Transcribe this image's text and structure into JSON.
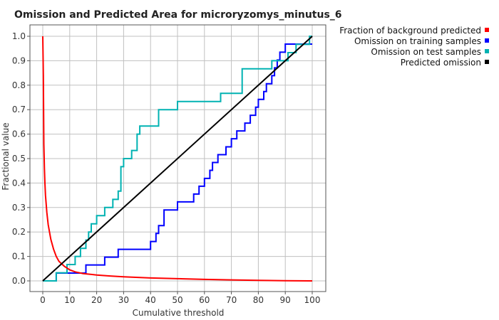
{
  "chart_data": {
    "type": "line",
    "title": "Omission and Predicted Area for microryzomys_minutus_6",
    "xlabel": "Cumulative threshold",
    "ylabel": "Fractional value",
    "xlim": [
      0,
      100
    ],
    "ylim": [
      0,
      1.0
    ],
    "xticks": [
      0,
      10,
      20,
      30,
      40,
      50,
      60,
      70,
      80,
      90,
      100
    ],
    "yticks": [
      0.0,
      0.1,
      0.2,
      0.3,
      0.4,
      0.5,
      0.6,
      0.7,
      0.8,
      0.9,
      1.0
    ],
    "xtick_labels": [
      "0",
      "10",
      "20",
      "30",
      "40",
      "50",
      "60",
      "70",
      "80",
      "90",
      "100"
    ],
    "ytick_labels": [
      "0.0",
      "0.1",
      "0.2",
      "0.3",
      "0.4",
      "0.5",
      "0.6",
      "0.7",
      "0.8",
      "0.9",
      "1.0"
    ],
    "grid": true,
    "legend_position": "top-right",
    "series": [
      {
        "name": "Fraction of background predicted",
        "color": "#ff0000",
        "step": false,
        "x": [
          0,
          0.2,
          0.4,
          0.6,
          0.8,
          1.0,
          1.5,
          2,
          3,
          4,
          5,
          6,
          8,
          10,
          12,
          15,
          20,
          25,
          30,
          40,
          50,
          60,
          70,
          80,
          90,
          100
        ],
        "y": [
          1.0,
          0.84,
          0.56,
          0.46,
          0.4,
          0.35,
          0.28,
          0.23,
          0.17,
          0.13,
          0.1,
          0.08,
          0.06,
          0.045,
          0.037,
          0.03,
          0.024,
          0.02,
          0.017,
          0.012,
          0.009,
          0.006,
          0.004,
          0.002,
          0.001,
          0.0
        ]
      },
      {
        "name": "Omission on training samples",
        "color": "#0000ff",
        "step": true,
        "x": [
          0,
          5,
          5,
          16,
          16,
          23,
          23,
          28,
          28,
          40,
          40,
          42,
          42,
          43,
          43,
          45,
          45,
          50,
          50,
          56,
          56,
          58,
          58,
          60,
          60,
          62,
          62,
          63,
          63,
          65,
          65,
          68,
          68,
          70,
          70,
          72,
          72,
          75,
          75,
          77,
          77,
          79,
          79,
          80,
          80,
          82,
          82,
          83,
          83,
          85,
          85,
          86,
          86,
          87,
          87,
          88,
          88,
          90,
          90,
          91,
          91,
          92,
          92,
          93,
          93,
          94,
          94,
          95,
          95,
          96,
          96,
          97,
          97,
          100
        ],
        "y": [
          0,
          0,
          0.032,
          0.032,
          0.065,
          0.065,
          0.097,
          0.097,
          0.129,
          0.129,
          0.161,
          0.161,
          0.194,
          0.194,
          0.226,
          0.226,
          0.29,
          0.29,
          0.323,
          0.323,
          0.355,
          0.355,
          0.387,
          0.387,
          0.419,
          0.419,
          0.452,
          0.452,
          0.484,
          0.484,
          0.516,
          0.516,
          0.548,
          0.548,
          0.581,
          0.581,
          0.613,
          0.613,
          0.645,
          0.645,
          0.677,
          0.677,
          0.71,
          0.71,
          0.742,
          0.742,
          0.774,
          0.774,
          0.806,
          0.806,
          0.839,
          0.839,
          0.871,
          0.871,
          0.903,
          0.903,
          0.935,
          0.935,
          0.968,
          0.968,
          0.968,
          0.968,
          0.968,
          0.968,
          0.968,
          0.968,
          0.968,
          0.968,
          0.968,
          0.968,
          0.968,
          0.968,
          0.968,
          0.968
        ]
      },
      {
        "name": "Omission on test samples",
        "color": "#00b2b2",
        "step": true,
        "x": [
          0,
          5,
          5,
          9,
          9,
          12,
          12,
          14,
          14,
          16,
          16,
          17,
          17,
          18,
          18,
          20,
          20,
          23,
          23,
          26,
          26,
          28,
          28,
          29,
          29,
          30,
          30,
          33,
          33,
          35,
          35,
          36,
          36,
          43,
          43,
          50,
          50,
          66,
          66,
          74,
          74,
          85,
          85,
          87,
          87,
          91,
          91,
          94,
          94,
          96,
          96,
          99,
          99,
          100
        ],
        "y": [
          0,
          0,
          0.033,
          0.033,
          0.067,
          0.067,
          0.1,
          0.1,
          0.133,
          0.133,
          0.167,
          0.167,
          0.2,
          0.2,
          0.233,
          0.233,
          0.267,
          0.267,
          0.3,
          0.3,
          0.333,
          0.333,
          0.367,
          0.367,
          0.467,
          0.467,
          0.5,
          0.5,
          0.533,
          0.533,
          0.6,
          0.6,
          0.633,
          0.633,
          0.7,
          0.7,
          0.733,
          0.733,
          0.767,
          0.767,
          0.867,
          0.867,
          0.9,
          0.9,
          0.9,
          0.9,
          0.933,
          0.933,
          0.967,
          0.967,
          0.967,
          0.967,
          1.0,
          1.0
        ]
      },
      {
        "name": "Predicted omission",
        "color": "#000000",
        "step": false,
        "x": [
          0,
          100
        ],
        "y": [
          0,
          1.0
        ]
      }
    ]
  }
}
